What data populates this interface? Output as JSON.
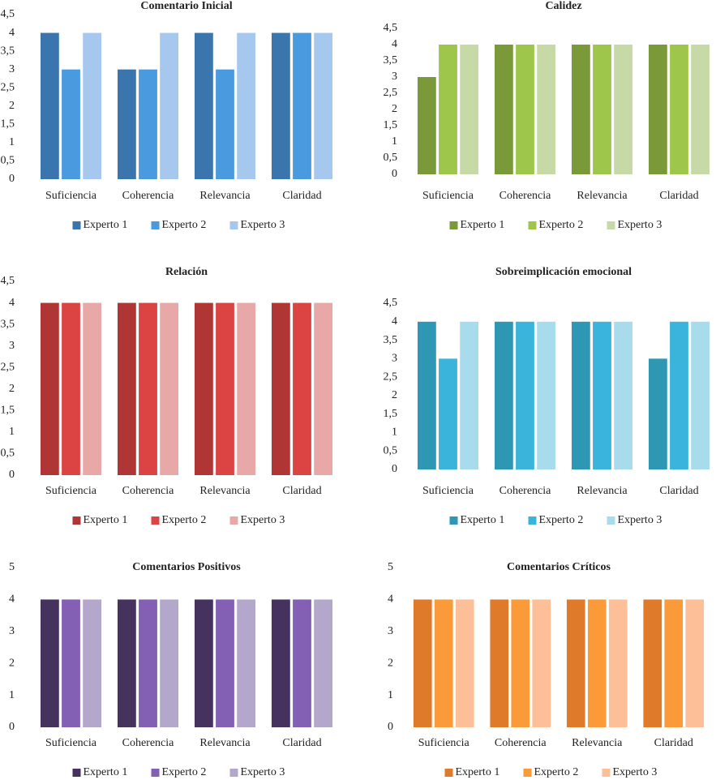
{
  "chart_data": [
    {
      "type": "bar",
      "title": "Comentario Inicial",
      "categories": [
        "Suficiencia",
        "Coherencia",
        "Relevancia",
        "Claridad"
      ],
      "series": [
        {
          "name": "Experto 1",
          "color": "#3a75ad",
          "values": [
            4,
            3,
            4,
            4
          ]
        },
        {
          "name": "Experto 2",
          "color": "#4a9ae0",
          "values": [
            3,
            3,
            3,
            4
          ]
        },
        {
          "name": "Experto 3",
          "color": "#a6c8ef",
          "values": [
            4,
            4,
            4,
            4
          ]
        }
      ],
      "ylim": [
        0,
        4.5
      ],
      "yticks": [
        0,
        {
          "value": 0.5,
          "label": "0,5"
        },
        1,
        {
          "value": 1.5,
          "label": "1,5"
        },
        2,
        {
          "value": 2.5,
          "label": "2,5"
        },
        3,
        {
          "value": 3.5,
          "label": "3,5"
        },
        4,
        {
          "value": 4.5,
          "label": "4,5"
        }
      ],
      "legend": "bottom"
    },
    {
      "type": "bar",
      "title": "Calidez",
      "categories": [
        "Suficiencia",
        "Coherencia",
        "Relevancia",
        "Claridad"
      ],
      "series": [
        {
          "name": "Experto 1",
          "color": "#7a9a3a",
          "values": [
            3,
            4,
            4,
            4
          ]
        },
        {
          "name": "Experto 2",
          "color": "#9dc64a",
          "values": [
            4,
            4,
            4,
            4
          ]
        },
        {
          "name": "Experto 3",
          "color": "#c6d9a6",
          "values": [
            4,
            4,
            4,
            4
          ]
        }
      ],
      "ylim": [
        0,
        4.5
      ],
      "yticks": [
        0,
        {
          "value": 0.5,
          "label": "0,5"
        },
        1,
        {
          "value": 1.5,
          "label": "1,5"
        },
        2,
        {
          "value": 2.5,
          "label": "2,5"
        },
        3,
        {
          "value": 3.5,
          "label": "3,5"
        },
        4,
        {
          "value": 4.5,
          "label": "4,5"
        }
      ],
      "legend": "bottom"
    },
    {
      "type": "bar",
      "title": "Relación",
      "categories": [
        "Suficiencia",
        "Coherencia",
        "Relevancia",
        "Claridad"
      ],
      "series": [
        {
          "name": "Experto 1",
          "color": "#b03535",
          "values": [
            4,
            4,
            4,
            4
          ]
        },
        {
          "name": "Experto 2",
          "color": "#dc4444",
          "values": [
            4,
            4,
            4,
            4
          ]
        },
        {
          "name": "Experto 3",
          "color": "#e8a8a8",
          "values": [
            4,
            4,
            4,
            4
          ]
        }
      ],
      "ylim": [
        0,
        4.5
      ],
      "yticks": [
        0,
        {
          "value": 0.5,
          "label": "0,5"
        },
        1,
        {
          "value": 1.5,
          "label": "1,5"
        },
        2,
        {
          "value": 2.5,
          "label": "2,5"
        },
        3,
        {
          "value": 3.5,
          "label": "3,5"
        },
        4,
        {
          "value": 4.5,
          "label": "4,5"
        }
      ],
      "legend": "bottom"
    },
    {
      "type": "bar",
      "title": "Sobreimplicación emocional",
      "categories": [
        "Suficiencia",
        "Coherencia",
        "Relevancia",
        "Claridad"
      ],
      "series": [
        {
          "name": "Experto 1",
          "color": "#2e97b4",
          "values": [
            4,
            4,
            4,
            3
          ]
        },
        {
          "name": "Experto 2",
          "color": "#3ab4da",
          "values": [
            3,
            4,
            4,
            4
          ]
        },
        {
          "name": "Experto 3",
          "color": "#a8dbec",
          "values": [
            4,
            4,
            4,
            4
          ]
        }
      ],
      "ylim": [
        0,
        4.5
      ],
      "yticks": [
        0,
        {
          "value": 0.5,
          "label": "0,5"
        },
        1,
        {
          "value": 1.5,
          "label": "1,5"
        },
        2,
        {
          "value": 2.5,
          "label": "2,5"
        },
        3,
        {
          "value": 3.5,
          "label": "3,5"
        },
        4,
        {
          "value": 4.5,
          "label": "4,5"
        }
      ],
      "legend": "bottom"
    },
    {
      "type": "bar",
      "title": "Comentarios Positivos",
      "categories": [
        "Suficiencia",
        "Coherencia",
        "Relevancia",
        "Claridad"
      ],
      "series": [
        {
          "name": "Experto 1",
          "color": "#45325f",
          "values": [
            4,
            4,
            4,
            4
          ]
        },
        {
          "name": "Experto 2",
          "color": "#8460b4",
          "values": [
            4,
            4,
            4,
            4
          ]
        },
        {
          "name": "Experto 3",
          "color": "#b3a7cb",
          "values": [
            4,
            4,
            4,
            4
          ]
        }
      ],
      "ylim": [
        0,
        5
      ],
      "yticks": [
        0,
        1,
        2,
        3,
        4,
        5
      ],
      "legend": "bottom"
    },
    {
      "type": "bar",
      "title": "Comentarios Críticos",
      "categories": [
        "Suficiencia",
        "Coherencia",
        "Relevancia",
        "Claridad"
      ],
      "series": [
        {
          "name": "Experto 1",
          "color": "#de7a2a",
          "values": [
            4,
            4,
            4,
            4
          ]
        },
        {
          "name": "Experto 2",
          "color": "#fb9a38",
          "values": [
            4,
            4,
            4,
            4
          ]
        },
        {
          "name": "Experto 3",
          "color": "#fcbf97",
          "values": [
            4,
            4,
            4,
            4
          ]
        }
      ],
      "ylim": [
        0,
        5
      ],
      "yticks": [
        0,
        1,
        2,
        3,
        4,
        5
      ],
      "legend": "bottom"
    }
  ]
}
